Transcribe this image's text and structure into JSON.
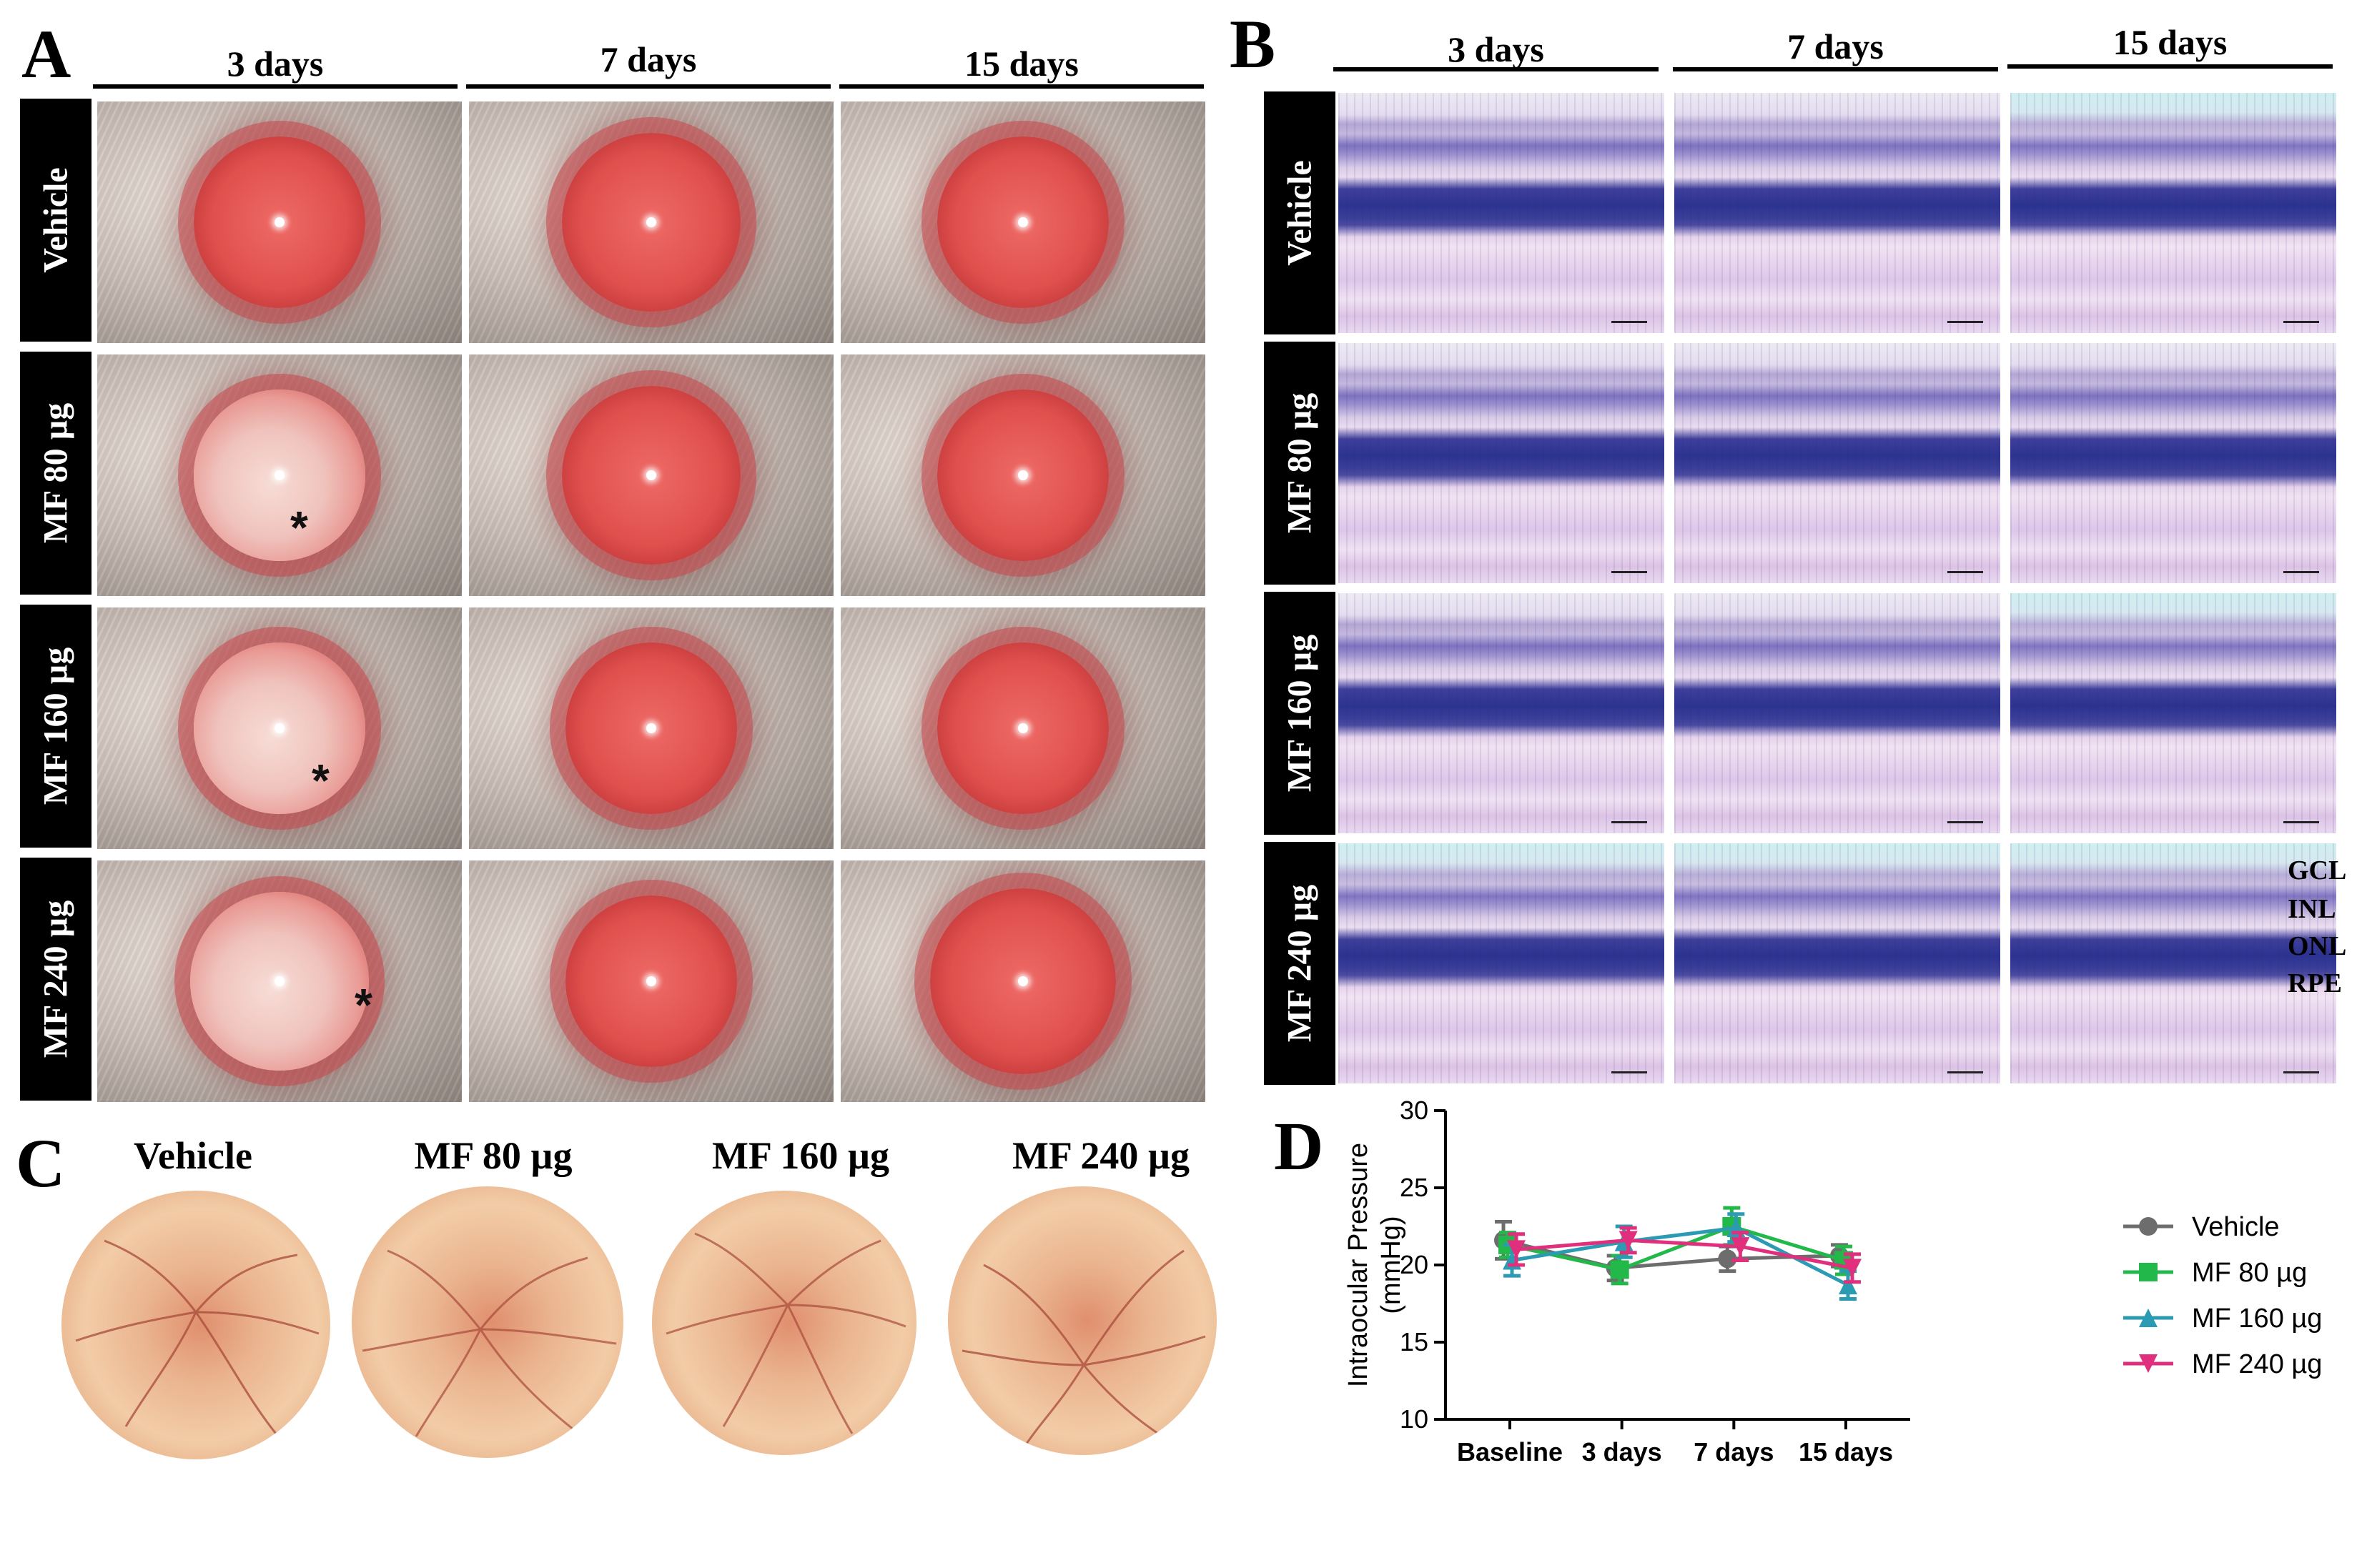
{
  "panel_a": {
    "letter": "A",
    "columns": [
      "3 days",
      "7 days",
      "15 days"
    ],
    "rows": [
      "Vehicle",
      "MF 80 µg",
      "MF 160 µg",
      "MF 240 µg"
    ],
    "asterisk": "*"
  },
  "panel_b": {
    "letter": "B",
    "columns": [
      "3 days",
      "7 days",
      "15 days"
    ],
    "rows": [
      "Vehicle",
      "MF 80 µg",
      "MF 160 µg",
      "MF 240 µg"
    ],
    "layer_labels": [
      "GCL",
      "INL",
      "ONL",
      "RPE"
    ]
  },
  "panel_c": {
    "letter": "C",
    "labels": [
      "Vehicle",
      "MF 80 µg",
      "MF 160 µg",
      "MF 240 µg"
    ]
  },
  "panel_d": {
    "letter": "D"
  },
  "chart_data": {
    "type": "line",
    "ylabel": "Intraocular Pressure (mmHg)",
    "ylabel_line1": "Intraocular Pressure",
    "ylabel_line2": "(mmHg)",
    "categories": [
      "Baseline",
      "3 days",
      "7 days",
      "15 days"
    ],
    "ylim": [
      10,
      30
    ],
    "yticks": [
      10,
      15,
      20,
      25,
      30
    ],
    "legend_position": "right",
    "series": [
      {
        "name": "Vehicle",
        "color": "#6d6d6d",
        "marker": "circle",
        "values": [
          21.6,
          19.8,
          20.4,
          20.6
        ],
        "errors": [
          1.2,
          0.8,
          0.8,
          0.7
        ]
      },
      {
        "name": "MF 80 µg",
        "color": "#22b84a",
        "marker": "square",
        "values": [
          21.3,
          19.7,
          22.5,
          20.3
        ],
        "errors": [
          0.8,
          0.9,
          1.2,
          0.9
        ]
      },
      {
        "name": "MF 160 µg",
        "color": "#2a9bb3",
        "marker": "triangle-up",
        "values": [
          20.3,
          21.5,
          22.4,
          18.7
        ],
        "errors": [
          1.0,
          1.0,
          0.9,
          0.9
        ]
      },
      {
        "name": "MF 240 µg",
        "color": "#e0307d",
        "marker": "triangle-down",
        "values": [
          21.0,
          21.6,
          21.2,
          19.8
        ],
        "errors": [
          1.0,
          0.8,
          0.9,
          0.9
        ]
      }
    ]
  }
}
